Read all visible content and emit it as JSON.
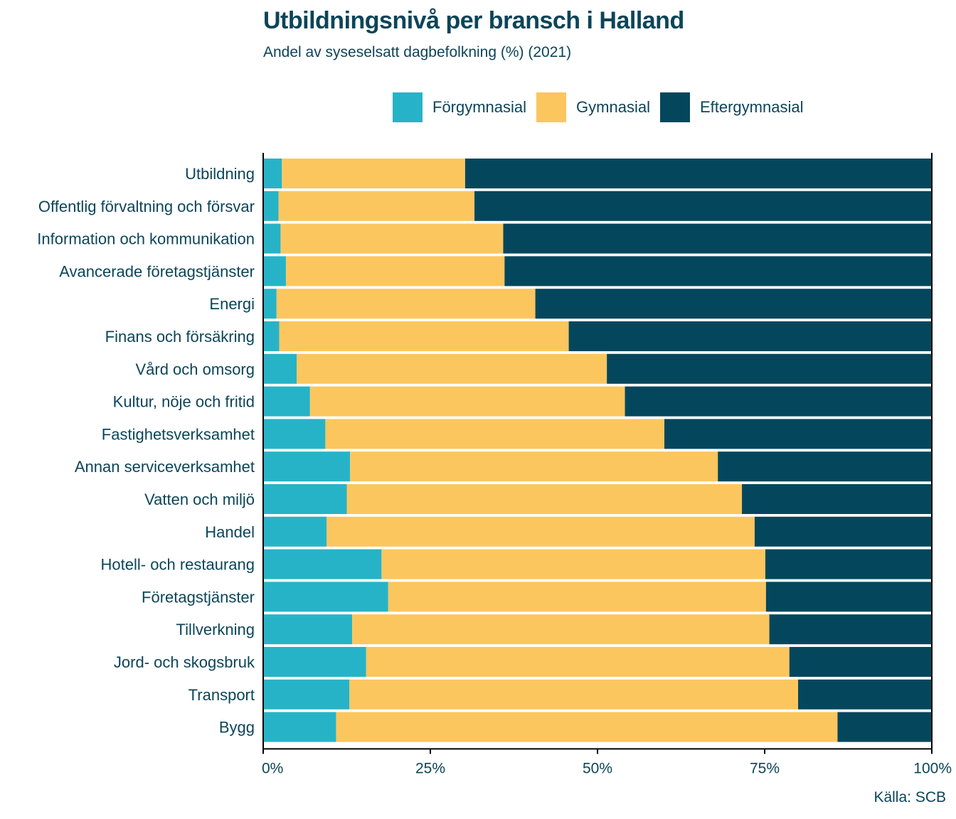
{
  "chart_data": {
    "type": "bar",
    "orientation": "horizontal",
    "stacked": true,
    "title": "Utbildningsnivå per bransch i Halland",
    "subtitle": "Andel av syseselsatt dagbefolkning (%) (2021)",
    "source": "Källa: SCB",
    "legend_position": "top",
    "xlim": [
      0,
      100
    ],
    "x_ticks": [
      "0%",
      "25%",
      "50%",
      "75%",
      "100%"
    ],
    "categories": [
      "Utbildning",
      "Offentlig förvaltning och försvar",
      "Information och kommunikation",
      "Avancerade företagstjänster",
      "Energi",
      "Finans och försäkring",
      "Vård och omsorg",
      "Kultur, nöje och fritid",
      "Fastighetsverksamhet",
      "Annan serviceverksamhet",
      "Vatten och miljö",
      "Handel",
      "Hotell- och restaurang",
      "Företagstjänster",
      "Tillverkning",
      "Jord- och skogsbruk",
      "Transport",
      "Bygg"
    ],
    "series": [
      {
        "name": "Förgymnasial",
        "color": "#27b3c7",
        "values": [
          2.8,
          2.3,
          2.6,
          3.4,
          2.0,
          2.4,
          5.0,
          7.0,
          9.3,
          13.0,
          12.5,
          9.5,
          17.7,
          18.7,
          13.3,
          15.4,
          12.9,
          10.9
        ]
      },
      {
        "name": "Gymnasial",
        "color": "#fcc65f",
        "values": [
          27.4,
          29.3,
          33.3,
          32.7,
          38.7,
          43.3,
          46.4,
          47.1,
          50.7,
          55.0,
          59.1,
          64.0,
          57.4,
          56.5,
          62.4,
          63.3,
          67.1,
          75.0
        ]
      },
      {
        "name": "Eftergymnasial",
        "color": "#04475d",
        "values": [
          69.8,
          68.4,
          64.1,
          63.9,
          59.3,
          54.3,
          48.6,
          45.9,
          40.0,
          32.0,
          28.4,
          26.5,
          24.9,
          24.8,
          24.3,
          21.3,
          20.0,
          14.1
        ]
      }
    ]
  }
}
